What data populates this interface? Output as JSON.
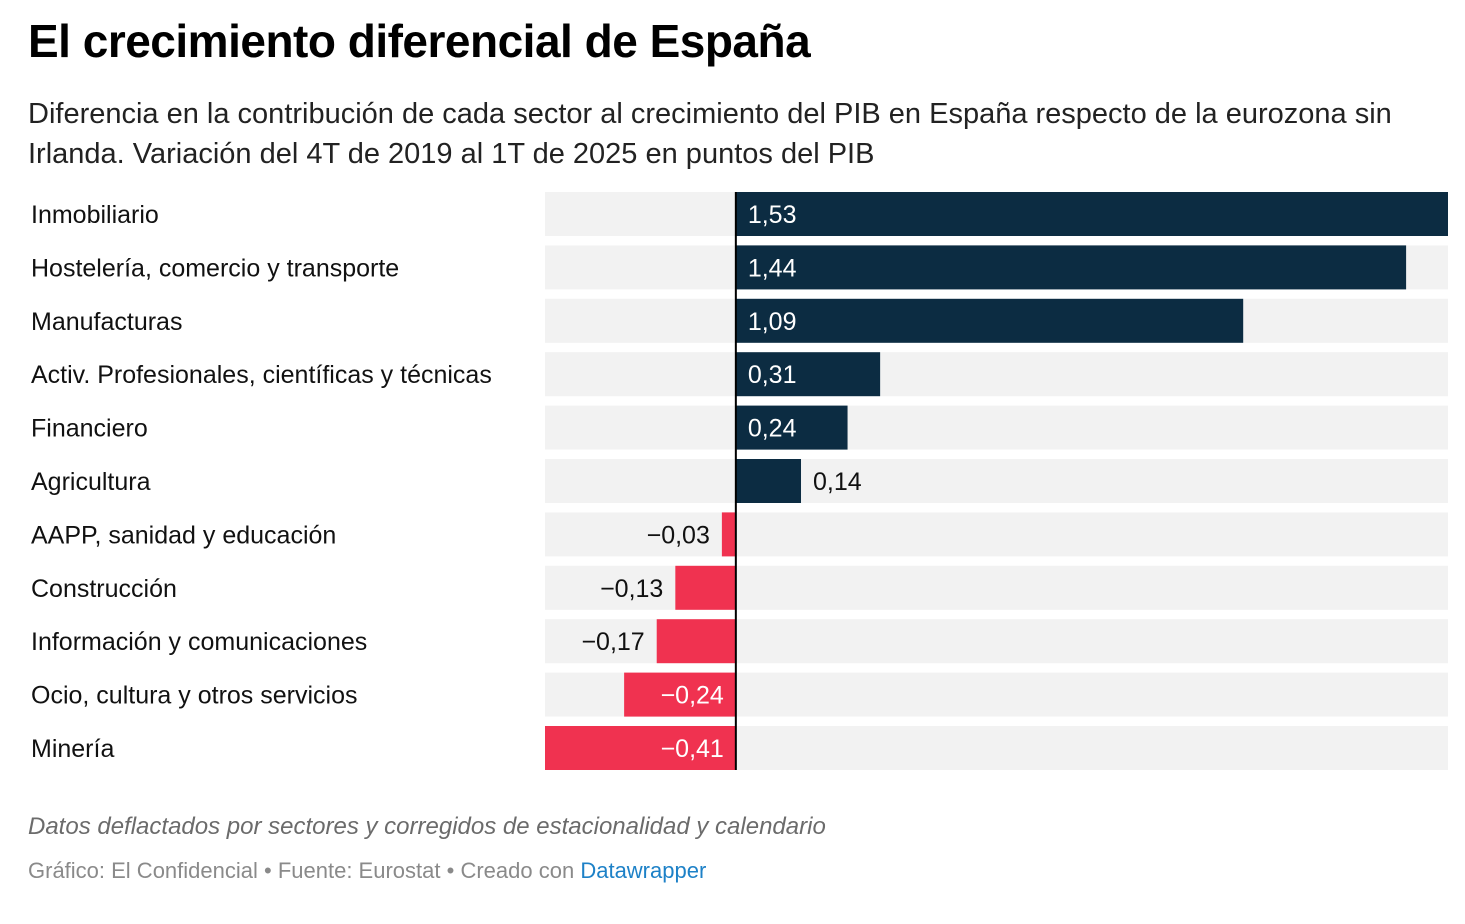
{
  "title": "El crecimiento diferencial de España",
  "subtitle": "Diferencia en la contribución de cada sector al crecimiento del PIB en España respecto de la eurozona sin Irlanda. Variación del 4T de 2019 al 1T de 2025 en puntos del PIB",
  "notes": "Datos deflactados por sectores y corregidos de estacionalidad y calendario",
  "footer": {
    "chart_by": "Gráfico: El Confidencial",
    "source": "Fuente: Eurostat",
    "created_with": "Creado con",
    "tool": "Datawrapper",
    "separator": "•"
  },
  "colors": {
    "positive": "#0c2c42",
    "negative": "#f03250",
    "background_bar": "#f2f2f2",
    "axis": "#000000",
    "link": "#1d81c7"
  },
  "chart_data": {
    "type": "bar",
    "orientation": "horizontal",
    "title": "El crecimiento diferencial de España",
    "categories": [
      "Inmobiliario",
      "Hostelería, comercio y transporte",
      "Manufacturas",
      "Activ. Profesionales, científicas y técnicas",
      "Financiero",
      "Agricultura",
      "AAPP, sanidad y educación",
      "Construcción",
      "Información y comunicaciones",
      "Ocio, cultura y otros servicios",
      "Minería"
    ],
    "values": [
      1.53,
      1.44,
      1.09,
      0.31,
      0.24,
      0.14,
      -0.03,
      -0.13,
      -0.17,
      -0.24,
      -0.41
    ],
    "labels": [
      "1,53",
      "1,44",
      "1,09",
      "0,31",
      "0,24",
      "0,14",
      "−0,03",
      "−0,13",
      "−0,17",
      "−0,24",
      "−0,41"
    ],
    "xlim": [
      -0.41,
      1.53
    ],
    "grid": false,
    "legend": "none"
  }
}
